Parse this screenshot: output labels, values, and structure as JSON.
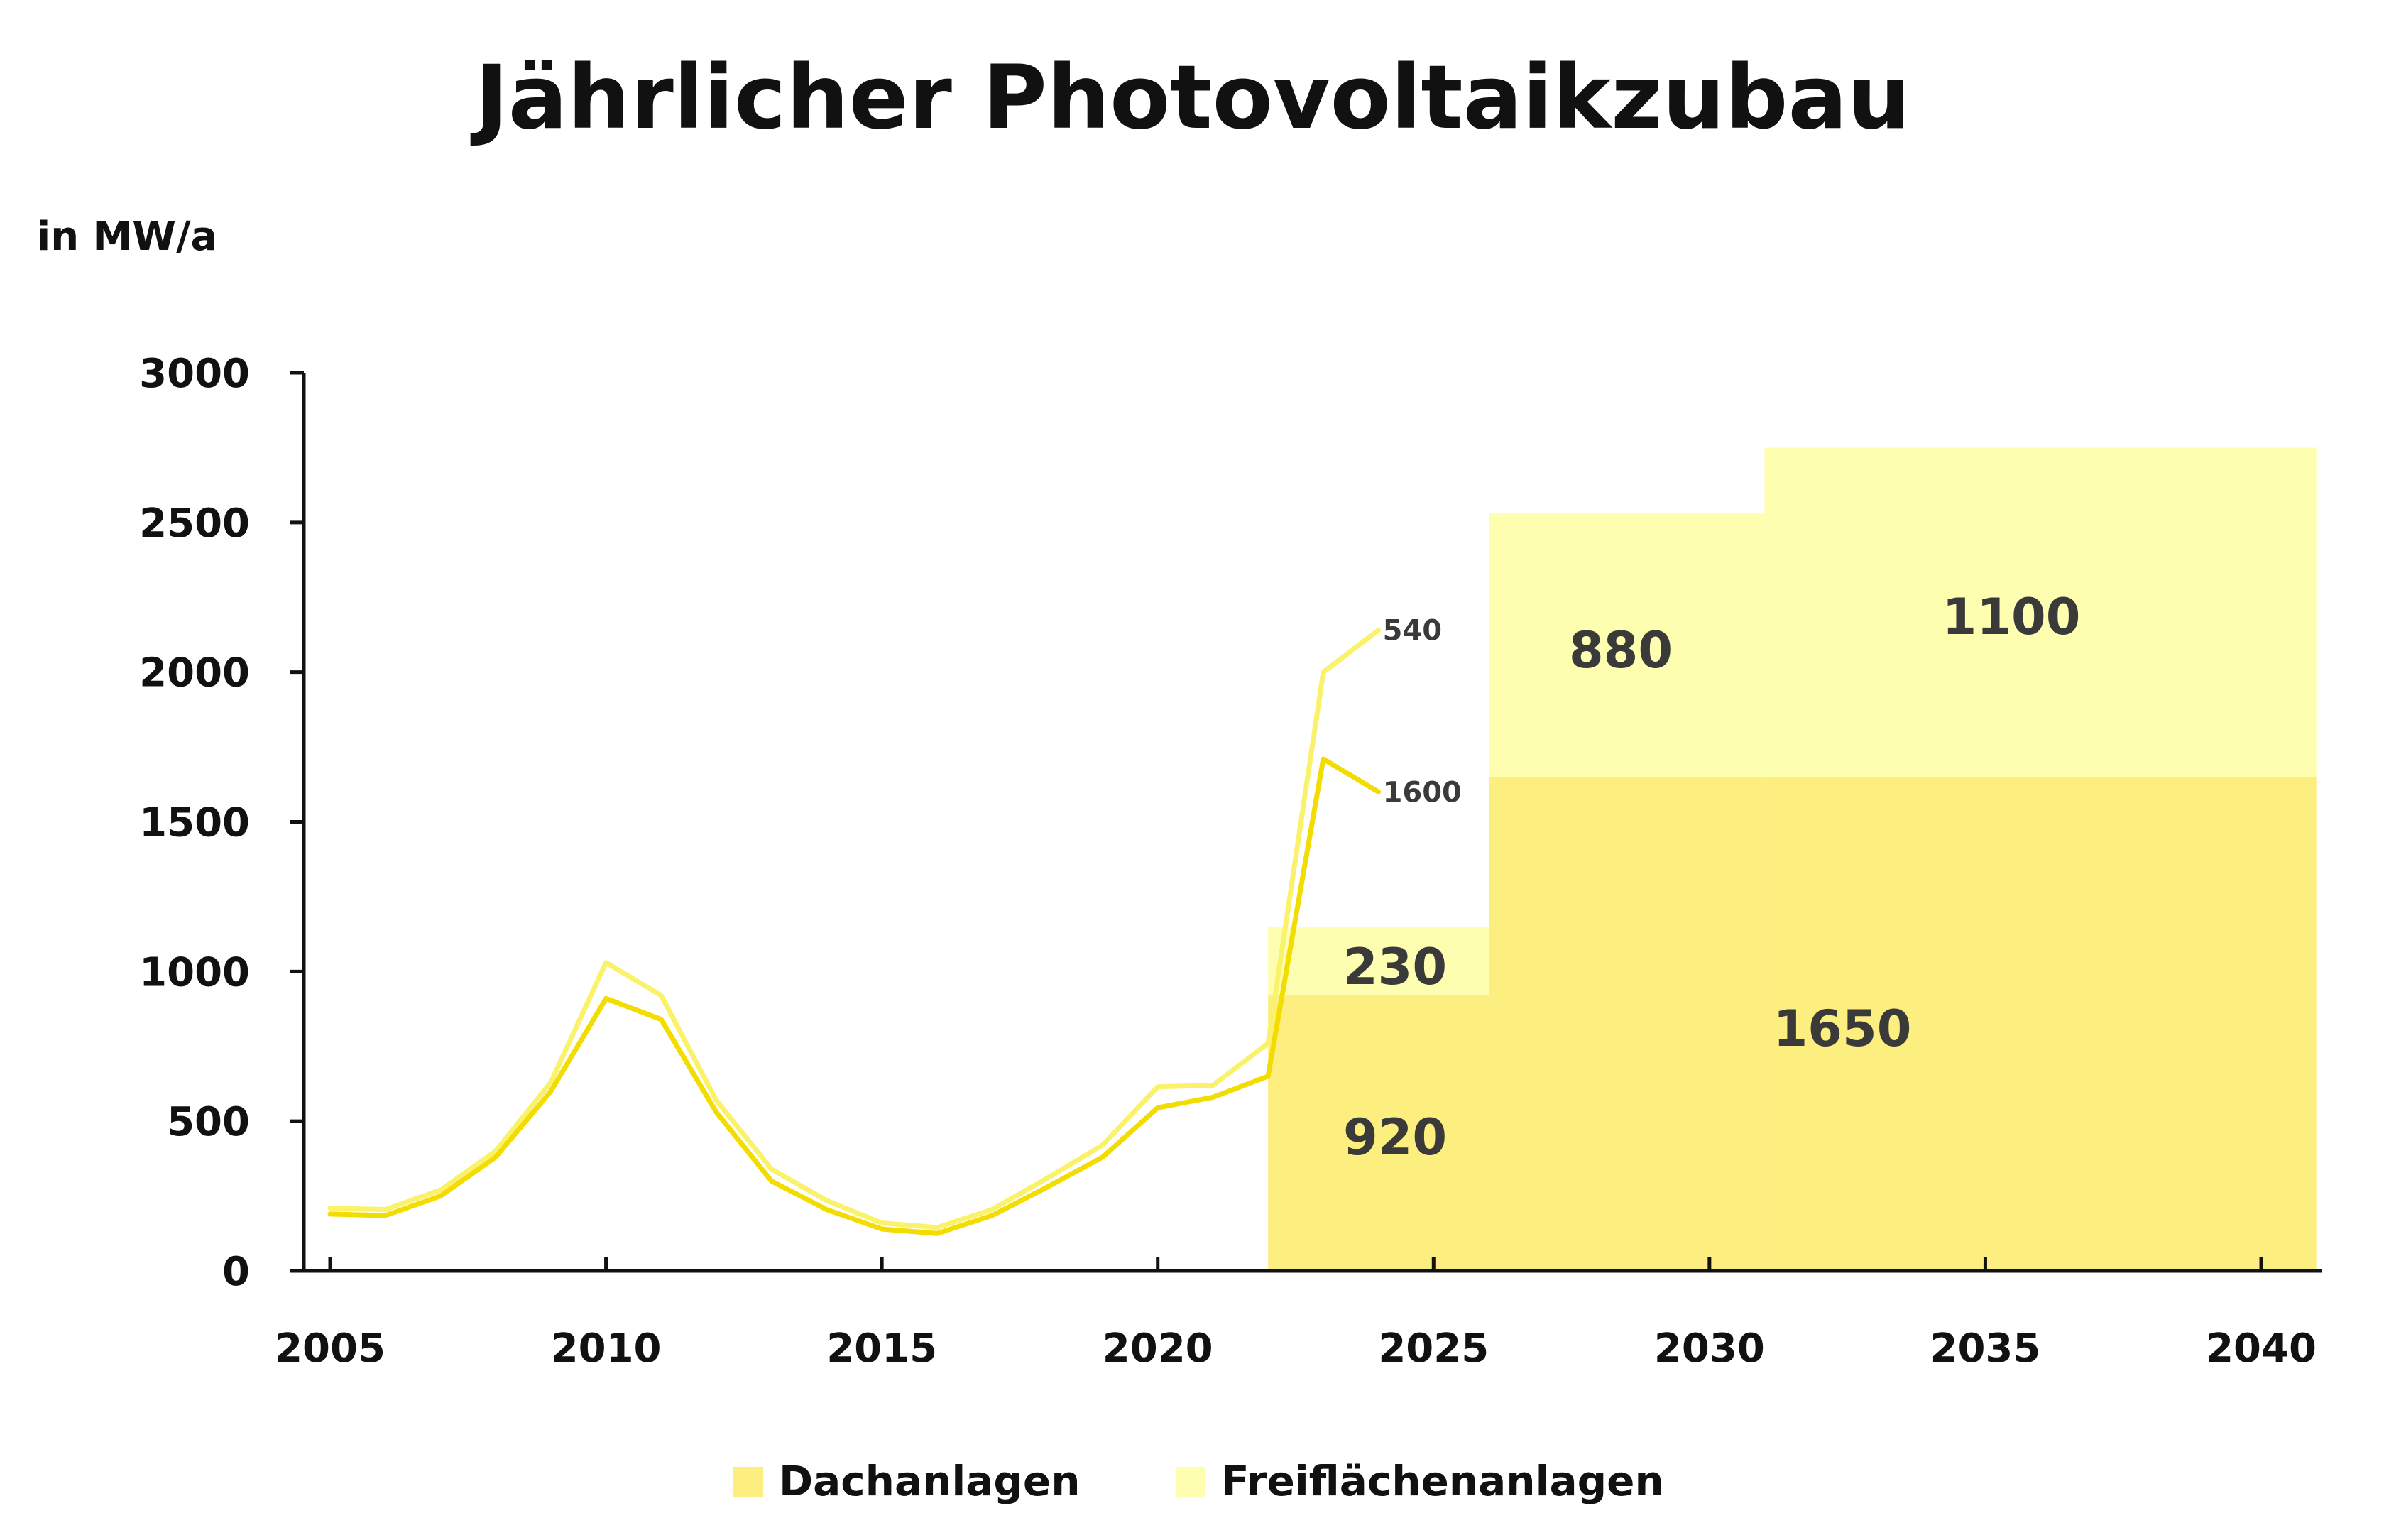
{
  "chart_data": {
    "type": "line",
    "title": "Jährlicher Photovoltaikzubau",
    "ylabel": "in MW/a",
    "xlim": [
      2005,
      2040
    ],
    "ylim": [
      0,
      3000
    ],
    "x_ticks": [
      2005,
      2010,
      2015,
      2020,
      2025,
      2030,
      2035,
      2040
    ],
    "y_ticks": [
      0,
      500,
      1000,
      1500,
      2000,
      2500,
      3000
    ],
    "legend": {
      "position": "bottom",
      "entries": [
        "Dachanlagen",
        "Freiflächenanlagen"
      ]
    },
    "colors": {
      "dach": "#fdee80",
      "frei": "#fefeb0",
      "line_dach": "#f3dc00",
      "line_total": "#fbf26c"
    },
    "series": [
      {
        "name": "Dachanlagen",
        "x": [
          2005,
          2006,
          2007,
          2008,
          2009,
          2010,
          2011,
          2012,
          2013,
          2014,
          2015,
          2016,
          2017,
          2018,
          2019,
          2020,
          2021,
          2022,
          2023,
          2024
        ],
        "values": [
          190,
          185,
          250,
          380,
          600,
          910,
          840,
          530,
          300,
          205,
          140,
          125,
          185,
          280,
          380,
          545,
          580,
          650,
          1710,
          1600
        ],
        "end_label": "1600"
      },
      {
        "name": "Freiflächenanlagen",
        "x": [
          2005,
          2006,
          2007,
          2008,
          2009,
          2010,
          2011,
          2012,
          2013,
          2014,
          2015,
          2016,
          2017,
          2018,
          2019,
          2020,
          2021,
          2022,
          2023,
          2024
        ],
        "values": [
          210,
          205,
          270,
          400,
          630,
          1030,
          920,
          570,
          340,
          235,
          160,
          145,
          205,
          310,
          420,
          615,
          620,
          760,
          2000,
          2140
        ],
        "end_label": "540"
      }
    ],
    "target_blocks": [
      {
        "x_from": 2022,
        "x_to": 2026,
        "dach": 920,
        "frei": 230,
        "dach_label": "920",
        "frei_label": "230"
      },
      {
        "x_from": 2026,
        "x_to": 2031,
        "dach": 1650,
        "frei": 880,
        "frei_label": "880"
      },
      {
        "x_from": 2031,
        "x_to": 2041,
        "dach": 1650,
        "frei": 1100,
        "dach_label": "1650",
        "frei_label": "1100"
      }
    ]
  }
}
